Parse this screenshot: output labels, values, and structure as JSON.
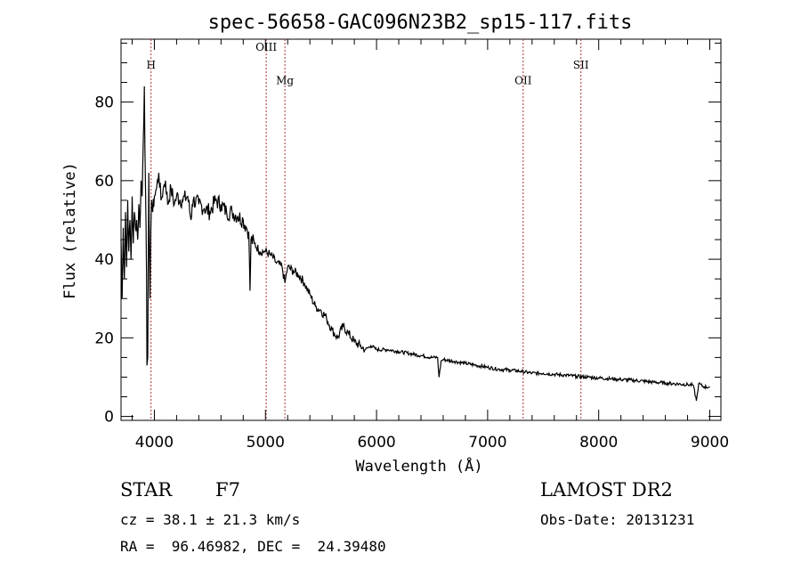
{
  "chart_data": {
    "type": "line",
    "title": "spec-56658-GAC096N23B2_sp15-117.fits",
    "xlabel": "Wavelength (Å)",
    "ylabel": "Flux (relative)",
    "xlim": [
      3700,
      9100
    ],
    "ylim": [
      -1,
      96
    ],
    "x_ticks": [
      4000,
      5000,
      6000,
      7000,
      8000,
      9000
    ],
    "y_ticks": [
      0,
      20,
      40,
      60,
      80
    ],
    "grid": false,
    "legend": "none",
    "spectral_lines": [
      {
        "name": "H",
        "wavelength": 3970,
        "label_y": 88.5
      },
      {
        "name": "OIII",
        "wavelength": 5007,
        "label_y": 93
      },
      {
        "name": "Mg",
        "wavelength": 5175,
        "label_y": 84.5
      },
      {
        "name": "OII",
        "wavelength": 7320,
        "label_y": 84.5
      },
      {
        "name": "SII",
        "wavelength": 7840,
        "label_y": 88.5
      }
    ],
    "series": [
      {
        "color": "#000000",
        "x": [
          3700,
          3710,
          3720,
          3730,
          3740,
          3750,
          3760,
          3770,
          3780,
          3790,
          3800,
          3810,
          3820,
          3830,
          3840,
          3850,
          3860,
          3870,
          3880,
          3890,
          3900,
          3910,
          3920,
          3930,
          3933,
          3940,
          3950,
          3960,
          3968,
          3975,
          3985,
          4000,
          4020,
          4040,
          4060,
          4080,
          4100,
          4120,
          4150,
          4180,
          4200,
          4250,
          4300,
          4330,
          4340,
          4350,
          4400,
          4450,
          4500,
          4550,
          4600,
          4650,
          4700,
          4750,
          4800,
          4830,
          4850,
          4861,
          4870,
          4900,
          4950,
          5000,
          5050,
          5100,
          5150,
          5175,
          5200,
          5250,
          5300,
          5350,
          5400,
          5450,
          5500,
          5550,
          5600,
          5650,
          5700,
          5750,
          5800,
          5850,
          5900,
          5950,
          6000,
          6100,
          6200,
          6300,
          6400,
          6500,
          6550,
          6563,
          6580,
          6600,
          6700,
          6800,
          6900,
          7000,
          7100,
          7200,
          7300,
          7400,
          7500,
          7600,
          7700,
          7800,
          7900,
          8000,
          8100,
          8200,
          8300,
          8400,
          8500,
          8600,
          8700,
          8800,
          8850,
          8880,
          8900,
          8950,
          9000
        ],
        "y": [
          45,
          30,
          48,
          35,
          52,
          38,
          55,
          42,
          50,
          40,
          56,
          44,
          52,
          48,
          50,
          45,
          54,
          48,
          60,
          56,
          70,
          84,
          58,
          35,
          13,
          15,
          62,
          30,
          48,
          55,
          52,
          56,
          58,
          62,
          55,
          58,
          60,
          54,
          58,
          54,
          56,
          55,
          56,
          50,
          54,
          55,
          54,
          53,
          52,
          55,
          54,
          52,
          52,
          51,
          50,
          48,
          47,
          32,
          45,
          44,
          42,
          42,
          41,
          39,
          38,
          34,
          38,
          37,
          36,
          34,
          31,
          28,
          27,
          25,
          22,
          20,
          23,
          21,
          19,
          18,
          17,
          18,
          17,
          17,
          16.5,
          16,
          15.5,
          15,
          15,
          10,
          14,
          14.5,
          14,
          13.5,
          13,
          12.5,
          12,
          11.8,
          11.5,
          11,
          11,
          10.7,
          10.5,
          10.2,
          10,
          9.8,
          9.6,
          9.4,
          9.2,
          9,
          8.7,
          8.5,
          8.3,
          8.1,
          8,
          4,
          8.3,
          7.5,
          7.5
        ]
      }
    ]
  },
  "info": {
    "obj_class": "STAR",
    "subclass": "F7",
    "survey": "LAMOST DR2",
    "cz": "cz = 38.1 ± 21.3 km/s",
    "obs_date": "Obs-Date: 20131231",
    "radec": "RA =  96.46982, DEC =  24.39480"
  }
}
